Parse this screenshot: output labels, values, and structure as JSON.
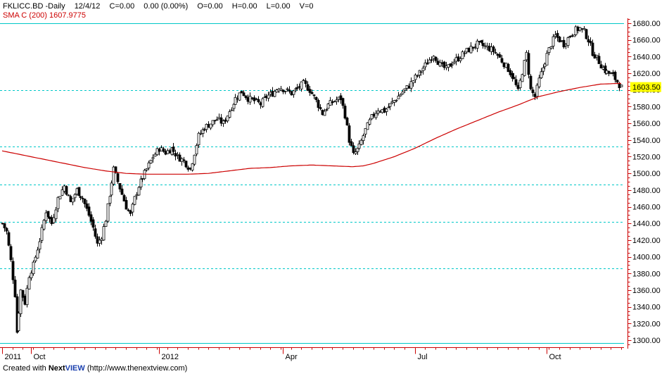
{
  "header": {
    "symbol": "FKLICC.BD -Daily",
    "date": "12/4/12",
    "change": "C=0.00",
    "change_pct": "0.00 (0.00%)",
    "open": "O=0.00",
    "high": "H=0.00",
    "low": "L=0.00",
    "volume": "V=0",
    "sma_label": "SMA C (200) 1607.9775"
  },
  "credit": {
    "prefix": "Created with ",
    "brand_a": "Next",
    "brand_b": "VIEW",
    "suffix": " (http://www.thenextview.com)"
  },
  "colors": {
    "background": "#ffffff",
    "candles": "#000000",
    "sma": "#cc0000",
    "gridlines": "#00c8c8",
    "price_axis": "#cc0000",
    "last_price_badge": "#ffff00"
  },
  "chart_data": {
    "type": "candlestick",
    "title": "",
    "xlabel": "",
    "ylabel": "",
    "ylim": [
      1295,
      1685
    ],
    "y_ticks": [
      1300,
      1320,
      1340,
      1360,
      1380,
      1400,
      1420,
      1440,
      1460,
      1480,
      1500,
      1520,
      1540,
      1560,
      1580,
      1600,
      1620,
      1640,
      1660,
      1680
    ],
    "y_tick_labels": [
      "1300.00",
      "1320.00",
      "1340.00",
      "1360.00",
      "1380.00",
      "1400.00",
      "1420.00",
      "1440.00",
      "1460.00",
      "1480.00",
      "1500.00",
      "1520.00",
      "1540.00",
      "1560.00",
      "1580.00",
      "1600.00",
      "1620.00",
      "1640.00",
      "1660.00",
      "1680.00"
    ],
    "h_gridlines": [
      1680,
      1600,
      1532,
      1487,
      1442,
      1386,
      1297
    ],
    "x_range": [
      0,
      300
    ],
    "x_ticks": [
      {
        "label": "2011",
        "x": 0
      },
      {
        "label": "Oct",
        "x": 14
      },
      {
        "label": "2012",
        "x": 76
      },
      {
        "label": "Apr",
        "x": 136
      },
      {
        "label": "Jul",
        "x": 200
      },
      {
        "label": "Oct",
        "x": 264
      }
    ],
    "last_price": 1603.5,
    "last_price_label": "1603.50",
    "close_series": {
      "name": "FKLICC.BD",
      "keypoints": [
        [
          0,
          1440
        ],
        [
          2,
          1430
        ],
        [
          4,
          1395
        ],
        [
          6,
          1355
        ],
        [
          7,
          1310
        ],
        [
          9,
          1360
        ],
        [
          11,
          1345
        ],
        [
          13,
          1378
        ],
        [
          15,
          1390
        ],
        [
          18,
          1420
        ],
        [
          21,
          1455
        ],
        [
          24,
          1440
        ],
        [
          27,
          1470
        ],
        [
          30,
          1485
        ],
        [
          33,
          1465
        ],
        [
          36,
          1480
        ],
        [
          39,
          1470
        ],
        [
          42,
          1450
        ],
        [
          44,
          1435
        ],
        [
          46,
          1415
        ],
        [
          48,
          1425
        ],
        [
          50,
          1445
        ],
        [
          52,
          1475
        ],
        [
          54,
          1505
        ],
        [
          56,
          1490
        ],
        [
          58,
          1475
        ],
        [
          60,
          1460
        ],
        [
          62,
          1450
        ],
        [
          64,
          1470
        ],
        [
          66,
          1485
        ],
        [
          68,
          1495
        ],
        [
          70,
          1505
        ],
        [
          73,
          1520
        ],
        [
          76,
          1530
        ],
        [
          79,
          1525
        ],
        [
          82,
          1530
        ],
        [
          85,
          1520
        ],
        [
          88,
          1515
        ],
        [
          91,
          1505
        ],
        [
          93,
          1525
        ],
        [
          95,
          1545
        ],
        [
          98,
          1555
        ],
        [
          101,
          1560
        ],
        [
          104,
          1565
        ],
        [
          107,
          1560
        ],
        [
          110,
          1575
        ],
        [
          113,
          1590
        ],
        [
          116,
          1598
        ],
        [
          119,
          1590
        ],
        [
          122,
          1587
        ],
        [
          125,
          1583
        ],
        [
          128,
          1592
        ],
        [
          131,
          1596
        ],
        [
          134,
          1604
        ],
        [
          137,
          1600
        ],
        [
          140,
          1596
        ],
        [
          143,
          1602
        ],
        [
          146,
          1608
        ],
        [
          149,
          1600
        ],
        [
          152,
          1587
        ],
        [
          155,
          1572
        ],
        [
          158,
          1582
        ],
        [
          161,
          1587
        ],
        [
          164,
          1590
        ],
        [
          166,
          1570
        ],
        [
          168,
          1540
        ],
        [
          170,
          1522
        ],
        [
          173,
          1532
        ],
        [
          176,
          1552
        ],
        [
          179,
          1567
        ],
        [
          182,
          1577
        ],
        [
          185,
          1575
        ],
        [
          188,
          1582
        ],
        [
          191,
          1590
        ],
        [
          194,
          1598
        ],
        [
          197,
          1605
        ],
        [
          200,
          1615
        ],
        [
          203,
          1623
        ],
        [
          206,
          1633
        ],
        [
          209,
          1643
        ],
        [
          212,
          1630
        ],
        [
          215,
          1625
        ],
        [
          218,
          1633
        ],
        [
          221,
          1638
        ],
        [
          224,
          1645
        ],
        [
          227,
          1650
        ],
        [
          230,
          1655
        ],
        [
          233,
          1653
        ],
        [
          236,
          1650
        ],
        [
          239,
          1645
        ],
        [
          242,
          1635
        ],
        [
          245,
          1625
        ],
        [
          248,
          1612
        ],
        [
          250,
          1598
        ],
        [
          252,
          1622
        ],
        [
          254,
          1643
        ],
        [
          256,
          1600
        ],
        [
          258,
          1592
        ],
        [
          260,
          1612
        ],
        [
          262,
          1627
        ],
        [
          264,
          1642
        ],
        [
          266,
          1655
        ],
        [
          268,
          1665
        ],
        [
          270,
          1660
        ],
        [
          272,
          1655
        ],
        [
          274,
          1662
        ],
        [
          276,
          1668
        ],
        [
          278,
          1672
        ],
        [
          280,
          1674
        ],
        [
          282,
          1670
        ],
        [
          284,
          1660
        ],
        [
          286,
          1645
        ],
        [
          288,
          1638
        ],
        [
          290,
          1630
        ],
        [
          292,
          1623
        ],
        [
          294,
          1620
        ],
        [
          296,
          1617
        ],
        [
          298,
          1610
        ],
        [
          300,
          1603
        ]
      ]
    },
    "sma_series": {
      "name": "SMA C (200)",
      "keypoints": [
        [
          0,
          1527
        ],
        [
          10,
          1522
        ],
        [
          20,
          1517
        ],
        [
          30,
          1512
        ],
        [
          40,
          1507
        ],
        [
          50,
          1503
        ],
        [
          60,
          1500
        ],
        [
          70,
          1499
        ],
        [
          80,
          1499
        ],
        [
          90,
          1499
        ],
        [
          100,
          1500
        ],
        [
          110,
          1503
        ],
        [
          120,
          1506
        ],
        [
          130,
          1507
        ],
        [
          140,
          1509
        ],
        [
          150,
          1510
        ],
        [
          160,
          1509
        ],
        [
          170,
          1508
        ],
        [
          175,
          1509
        ],
        [
          180,
          1512
        ],
        [
          190,
          1520
        ],
        [
          200,
          1530
        ],
        [
          210,
          1542
        ],
        [
          220,
          1553
        ],
        [
          230,
          1563
        ],
        [
          240,
          1573
        ],
        [
          250,
          1582
        ],
        [
          260,
          1592
        ],
        [
          270,
          1598
        ],
        [
          280,
          1603
        ],
        [
          290,
          1607
        ],
        [
          300,
          1608
        ]
      ]
    }
  }
}
